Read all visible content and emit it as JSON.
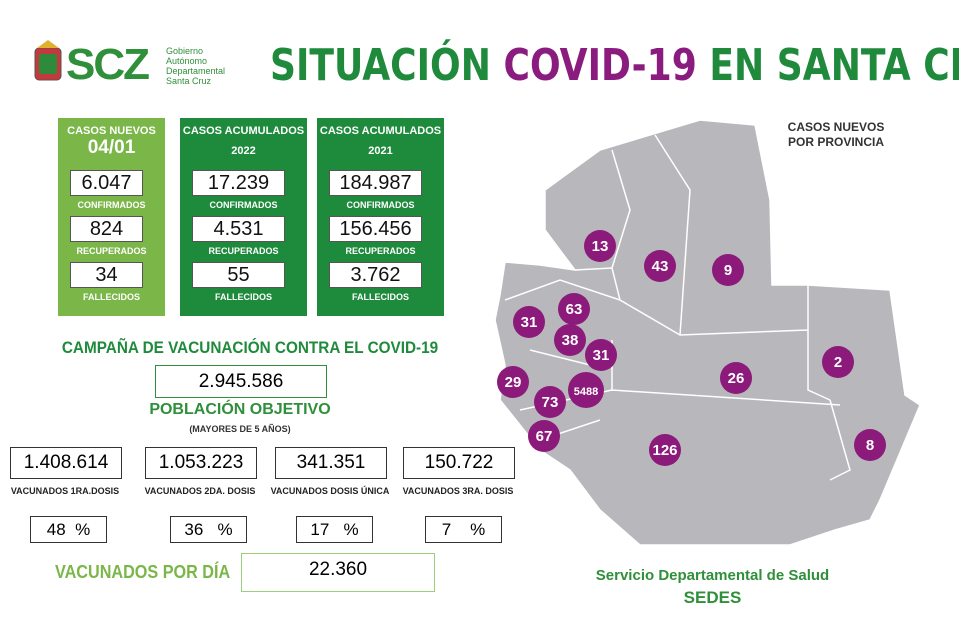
{
  "header": {
    "logo": {
      "short": "SCZ",
      "org_lines": [
        "Gobierno",
        "Autónomo",
        "Departamental",
        "Santa Cruz"
      ]
    },
    "title": {
      "part1": "SITUACIÓN",
      "highlight": "COVID-19",
      "part2": "EN SANTA CRUZ"
    }
  },
  "cases": [
    {
      "heading": "CASOS NUEVOS",
      "period": "04/01",
      "confirmed": "6.047",
      "recovered": "824",
      "deaths": "34"
    },
    {
      "heading": "CASOS ACUMULADOS",
      "period": "2022",
      "confirmed": "17.239",
      "recovered": "4.531",
      "deaths": "55"
    },
    {
      "heading": "CASOS ACUMULADOS",
      "period": "2021",
      "confirmed": "184.987",
      "recovered": "156.456",
      "deaths": "3.762"
    }
  ],
  "case_labels": {
    "confirmed": "CONFIRMADOS",
    "recovered": "RECUPERADOS",
    "deaths": "FALLECIDOS"
  },
  "vaccination": {
    "title": "CAMPAÑA DE VACUNACIÓN CONTRA EL COVID-19",
    "target_value": "2.945.586",
    "target_label": "POBLACIÓN OBJETIVO",
    "target_note": "(MAYORES DE 5 AÑOS)",
    "doses": [
      {
        "value": "1.408.614",
        "label": "VACUNADOS 1RA.DOSIS",
        "percent": "48  %"
      },
      {
        "value": "1.053.223",
        "label": "VACUNADOS 2DA. DOSIS",
        "percent": "36   %"
      },
      {
        "value": "341.351",
        "label": "VACUNADOS DOSIS ÚNICA",
        "percent": "17   %"
      },
      {
        "value": "150.722",
        "label": "VACUNADOS 3RA. DOSIS",
        "percent": "7    %"
      }
    ],
    "per_day_label": "VACUNADOS POR DÍA",
    "per_day_value": "22.360"
  },
  "map": {
    "title_lines": [
      "CASOS NUEVOS",
      "POR PROVINCIA"
    ],
    "provinces": [
      "13",
      "43",
      "9",
      "63",
      "31",
      "38",
      "31",
      "2",
      "26",
      "29",
      "5488",
      "73",
      "67",
      "126",
      "8"
    ]
  },
  "footer": {
    "line1": "Servicio Departamental de Salud",
    "line2": "SEDES"
  }
}
